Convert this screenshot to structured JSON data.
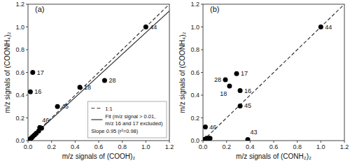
{
  "chart_data": [
    {
      "type": "scatter",
      "title": "(a)",
      "x_label": "m/z signals of (COOH)₂",
      "y_label": "m/z signals of (COONH₄)₂",
      "series": [
        {
          "name": "1:1",
          "type": "line",
          "line_style": "dashed",
          "color": "#333333",
          "x": [
            0,
            1.2
          ],
          "values": [
            0,
            1.2
          ]
        },
        {
          "name": "Fit (m/z signal > 0.01,\nm/z 16 and 17 excluded)",
          "type": "line",
          "line_style": "solid",
          "color": "#333333",
          "x": [
            0,
            1.2
          ],
          "values": [
            0,
            1.14
          ]
        },
        {
          "type": "scatter",
          "marker": "circle",
          "color": "#000000",
          "x": [
            1.0,
            0.65,
            0.44,
            0.25,
            0.04,
            0.02,
            0.1,
            0.005,
            0.015,
            0.02,
            0.03,
            0.04,
            0.055,
            0.07,
            0.09,
            0.115
          ],
          "values": [
            1.0,
            0.53,
            0.47,
            0.3,
            0.6,
            0.43,
            0.115,
            0.005,
            0.01,
            0.015,
            0.025,
            0.035,
            0.05,
            0.065,
            0.085,
            0.11
          ],
          "labels": [
            "44",
            "28",
            "18",
            "45",
            "17",
            "16",
            "46",
            null,
            null,
            null,
            null,
            null,
            null,
            null,
            null,
            null
          ]
        }
      ],
      "annotation": "Slope 0.95 (r²=0.98)",
      "legend": "lower right",
      "grid": false,
      "xlim": [
        0,
        1.2
      ],
      "ylim": [
        0,
        1.2
      ],
      "xticks": [
        {
          "value": 0.0,
          "label": "0.0"
        },
        0.2,
        0.4,
        0.6,
        0.8,
        {
          "value": 1.0,
          "label": "1.0"
        },
        1.2
      ],
      "yticks": [
        {
          "value": 0.0,
          "label": "0.0"
        },
        0.2,
        0.4,
        0.6,
        0.8,
        {
          "value": 1.0,
          "label": "1.0"
        },
        1.2
      ]
    },
    {
      "type": "scatter",
      "title": "(b)",
      "x_label": "m/z signals of (CONH₂)₂",
      "y_label": "m/z signals of (COONH₄)₂",
      "series": [
        {
          "type": "line",
          "line_style": "dashed",
          "color": "#333333",
          "x": [
            0,
            1.2
          ],
          "values": [
            0,
            1.2
          ]
        },
        {
          "type": "scatter",
          "marker": "circle",
          "color": "#000000",
          "x": [
            1.0,
            0.285,
            0.19,
            0.225,
            0.315,
            0.315,
            0.02,
            0.38,
            0.005,
            0.01,
            0.015,
            0.02,
            0.03,
            0.04,
            0.05,
            0.06
          ],
          "values": [
            1.0,
            0.59,
            0.535,
            0.48,
            0.44,
            0.305,
            0.12,
            0.01,
            0.005,
            0.01,
            0.005,
            0.01,
            0.02,
            0.01,
            0.02,
            0.02
          ],
          "labels": [
            "44",
            "17",
            "28",
            "18",
            "16",
            "45",
            "46",
            "43",
            null,
            null,
            null,
            null,
            null,
            null,
            null,
            null
          ]
        }
      ],
      "grid": false,
      "xlim": [
        0,
        1.2
      ],
      "ylim": [
        0,
        1.2
      ],
      "xticks": [
        {
          "value": 0.0,
          "label": "0.0"
        },
        0.2,
        0.4,
        0.6,
        0.8,
        {
          "value": 1.0,
          "label": "1.0"
        },
        1.2
      ],
      "yticks": [
        {
          "value": 0.0,
          "label": "0.0"
        },
        0.2,
        0.4,
        0.6,
        0.8,
        {
          "value": 1.0,
          "label": "1.0"
        },
        1.2
      ]
    }
  ]
}
